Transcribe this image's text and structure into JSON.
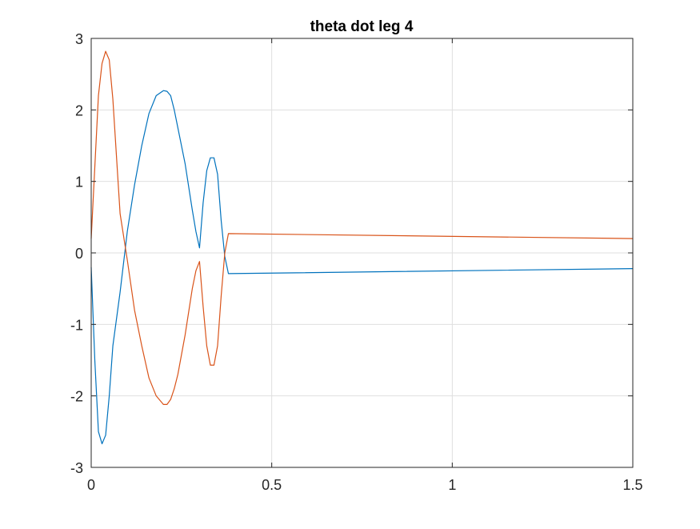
{
  "chart_data": {
    "type": "line",
    "title": "theta dot leg 4",
    "xlabel": "",
    "ylabel": "",
    "xlim": [
      0,
      1.5
    ],
    "ylim": [
      -3,
      3
    ],
    "xticks": [
      0,
      0.5,
      1,
      1.5
    ],
    "xtick_labels": [
      "0",
      "0.5",
      "1",
      "1.5"
    ],
    "yticks": [
      -3,
      -2,
      -1,
      0,
      1,
      2,
      3
    ],
    "ytick_labels": [
      "-3",
      "-2",
      "-1",
      "0",
      "1",
      "2",
      "3"
    ],
    "grid": true,
    "legend": "none",
    "series": [
      {
        "color": "#0072BD",
        "x": [
          0,
          0.01,
          0.02,
          0.03,
          0.04,
          0.05,
          0.06,
          0.08,
          0.1,
          0.12,
          0.14,
          0.16,
          0.18,
          0.2,
          0.21,
          0.22,
          0.23,
          0.24,
          0.26,
          0.28,
          0.29,
          0.3,
          0.31,
          0.32,
          0.33,
          0.34,
          0.35,
          0.36,
          0.37,
          0.38,
          1.5
        ],
        "y": [
          -0.2,
          -1.5,
          -2.5,
          -2.67,
          -2.55,
          -2.0,
          -1.3,
          -0.55,
          0.3,
          0.95,
          1.5,
          1.95,
          2.2,
          2.27,
          2.26,
          2.2,
          2.0,
          1.75,
          1.25,
          0.6,
          0.3,
          0.07,
          0.7,
          1.15,
          1.33,
          1.33,
          1.1,
          0.45,
          -0.05,
          -0.29,
          -0.22
        ]
      },
      {
        "color": "#D95319",
        "x": [
          0,
          0.01,
          0.02,
          0.03,
          0.04,
          0.05,
          0.06,
          0.08,
          0.1,
          0.12,
          0.14,
          0.16,
          0.18,
          0.2,
          0.21,
          0.22,
          0.23,
          0.24,
          0.26,
          0.28,
          0.29,
          0.3,
          0.31,
          0.32,
          0.33,
          0.34,
          0.35,
          0.36,
          0.37,
          0.38,
          1.5
        ],
        "y": [
          0.2,
          1.2,
          2.2,
          2.65,
          2.82,
          2.7,
          2.15,
          0.55,
          -0.1,
          -0.8,
          -1.3,
          -1.75,
          -2.0,
          -2.12,
          -2.12,
          -2.05,
          -1.9,
          -1.7,
          -1.15,
          -0.5,
          -0.25,
          -0.12,
          -0.75,
          -1.3,
          -1.57,
          -1.57,
          -1.3,
          -0.6,
          0.0,
          0.27,
          0.2
        ]
      }
    ]
  }
}
